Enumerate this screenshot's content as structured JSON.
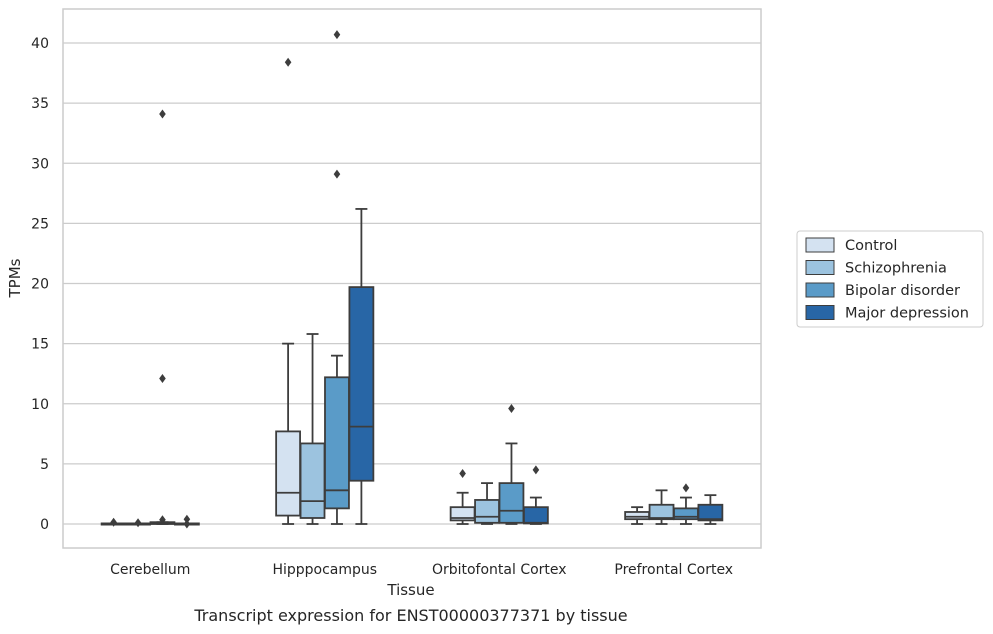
{
  "chart_data": {
    "type": "box",
    "xlabel": "Tissue",
    "ylabel": "TPMs",
    "caption": "Transcript expression for ENST00000377371 by tissue",
    "ylim": [
      -2,
      42.7
    ],
    "yticks": [
      0,
      5,
      10,
      15,
      20,
      25,
      30,
      35,
      40
    ],
    "grid": "horizontal",
    "legend_position": "right",
    "categories": [
      "Cerebellum",
      "Hipppocampus",
      "Orbitofontal Cortex",
      "Prefrontal Cortex"
    ],
    "series": [
      {
        "name": "Control",
        "color": "#d4e2f1",
        "boxes": [
          {
            "whislo": 0,
            "q1": 0,
            "med": 0,
            "q3": 0.05,
            "whishi": 0.05,
            "fliers": [
              0.15
            ]
          },
          {
            "whislo": 0,
            "q1": 0.7,
            "med": 2.6,
            "q3": 7.7,
            "whishi": 15.0,
            "fliers": [
              38.4
            ]
          },
          {
            "whislo": 0,
            "q1": 0.3,
            "med": 0.5,
            "q3": 1.4,
            "whishi": 2.6,
            "fliers": [
              4.2
            ]
          },
          {
            "whislo": 0,
            "q1": 0.4,
            "med": 0.6,
            "q3": 1.0,
            "whishi": 1.4,
            "fliers": []
          }
        ]
      },
      {
        "name": "Schizophrenia",
        "color": "#9cc3df",
        "boxes": [
          {
            "whislo": 0,
            "q1": 0,
            "med": 0,
            "q3": 0.05,
            "whishi": 0.05,
            "fliers": [
              0.1
            ]
          },
          {
            "whislo": 0,
            "q1": 0.5,
            "med": 1.9,
            "q3": 6.7,
            "whishi": 15.8,
            "fliers": []
          },
          {
            "whislo": 0,
            "q1": 0.1,
            "med": 0.6,
            "q3": 2.0,
            "whishi": 3.4,
            "fliers": []
          },
          {
            "whislo": 0,
            "q1": 0.4,
            "med": 0.5,
            "q3": 1.6,
            "whishi": 2.8,
            "fliers": []
          }
        ]
      },
      {
        "name": "Bipolar disorder",
        "color": "#5a9bc8",
        "boxes": [
          {
            "whislo": 0,
            "q1": 0,
            "med": 0.1,
            "q3": 0.15,
            "whishi": 0.15,
            "fliers": [
              0.35,
              12.1,
              34.1
            ]
          },
          {
            "whislo": 0,
            "q1": 1.3,
            "med": 2.8,
            "q3": 12.2,
            "whishi": 14.0,
            "fliers": [
              29.1,
              40.7
            ]
          },
          {
            "whislo": 0,
            "q1": 0.1,
            "med": 1.1,
            "q3": 3.4,
            "whishi": 6.7,
            "fliers": [
              9.6
            ]
          },
          {
            "whislo": 0,
            "q1": 0.4,
            "med": 0.6,
            "q3": 1.3,
            "whishi": 2.2,
            "fliers": [
              3.0
            ]
          }
        ]
      },
      {
        "name": "Major depression",
        "color": "#2866a6",
        "boxes": [
          {
            "whislo": 0,
            "q1": 0,
            "med": 0,
            "q3": 0.05,
            "whishi": 0.05,
            "fliers": [
              0.4,
              0.0
            ]
          },
          {
            "whislo": 0,
            "q1": 3.6,
            "med": 8.1,
            "q3": 19.7,
            "whishi": 26.2,
            "fliers": []
          },
          {
            "whislo": 0,
            "q1": 0.05,
            "med": 0.1,
            "q3": 1.4,
            "whishi": 2.2,
            "fliers": [
              4.5
            ]
          },
          {
            "whislo": 0,
            "q1": 0.3,
            "med": 0.4,
            "q3": 1.6,
            "whishi": 2.4,
            "fliers": []
          }
        ]
      }
    ]
  }
}
